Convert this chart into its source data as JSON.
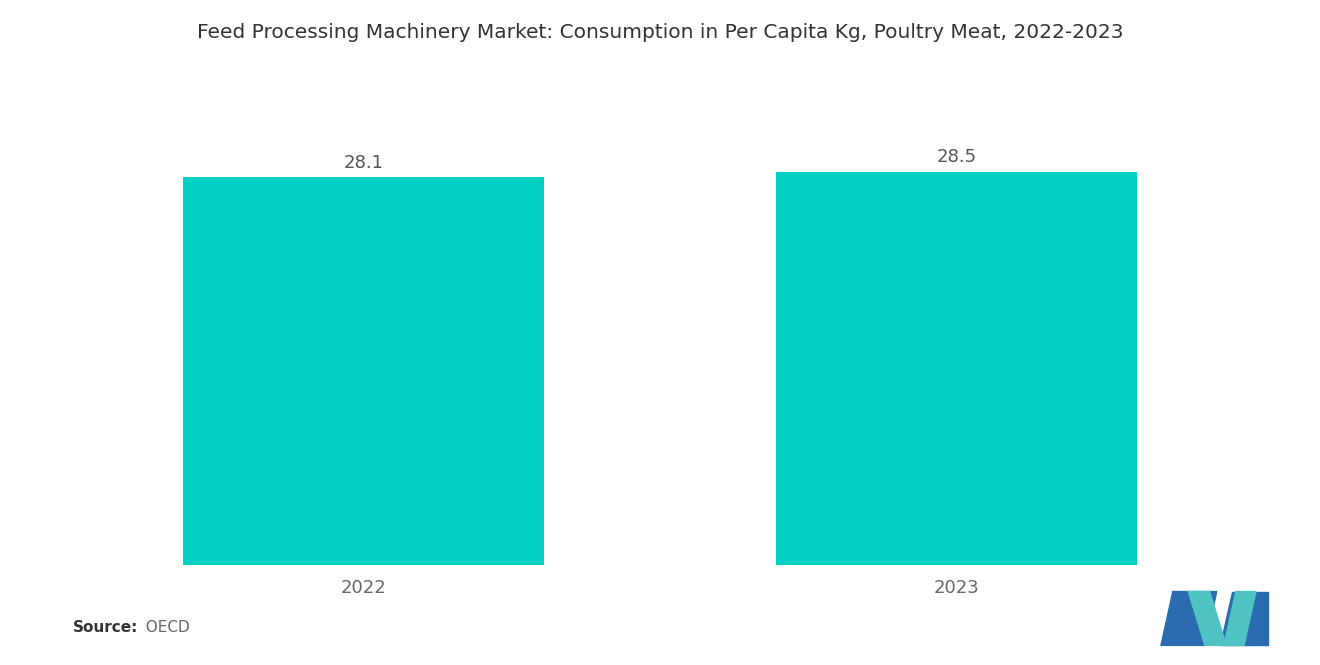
{
  "title": "Feed Processing Machinery Market: Consumption in Per Capita Kg, Poultry Meat, 2022-2023",
  "categories": [
    "2022",
    "2023"
  ],
  "values": [
    28.1,
    28.5
  ],
  "bar_color": "#00D0C4",
  "background_color": "#ffffff",
  "source_label": "Source:",
  "source_value": "  OECD",
  "title_fontsize": 14.5,
  "label_fontsize": 13,
  "value_fontsize": 13,
  "ylim": [
    0,
    36
  ],
  "bar_width": 0.28,
  "x_positions": [
    0.27,
    0.73
  ]
}
